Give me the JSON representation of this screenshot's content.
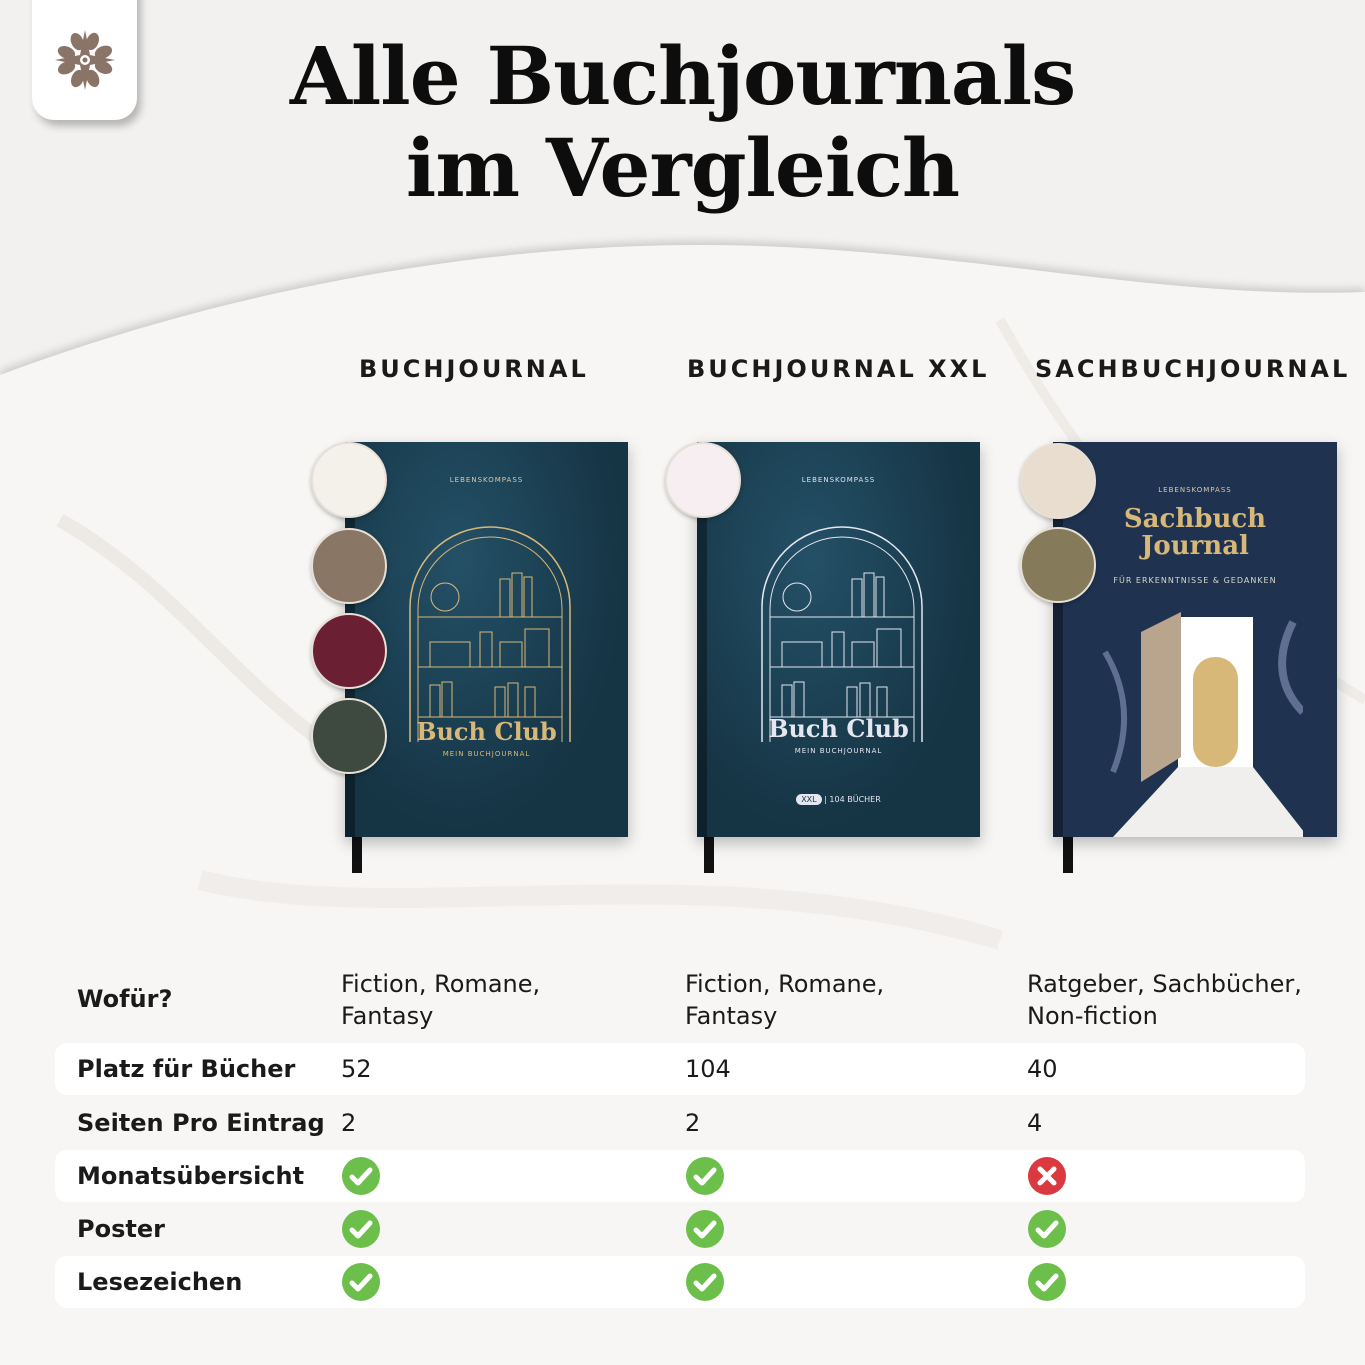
{
  "title": {
    "line1": "Alle Buchjournals",
    "line2": "im Vergleich"
  },
  "logo": {
    "icon": "compass-rose-icon",
    "color": "#8a7468"
  },
  "columns": [
    {
      "header": "BUCHJOURNAL",
      "cover": {
        "brand": "LEBENSKOMPASS",
        "title": "Buch Club",
        "subtitle": "MEIN BUCHJOURNAL",
        "accent": "#d8b878",
        "bg": "#173848"
      },
      "swatches": [
        "#f4f0ea",
        "#8a7665",
        "#6b1f33",
        "#3e4a40"
      ]
    },
    {
      "header": "BUCHJOURNAL XXL",
      "cover": {
        "brand": "LEBENSKOMPASS",
        "title": "Buch Club",
        "subtitle": "MEIN BUCHJOURNAL",
        "badge": "XXL",
        "badge_note": "104 BÜCHER",
        "accent": "#e4e6f0",
        "bg": "#173848"
      },
      "swatches": [
        "#f6eef0"
      ]
    },
    {
      "header": "SACHBUCHJOURNAL",
      "cover": {
        "brand": "LEBENSKOMPASS",
        "title": "Sachbuch Journal",
        "subtitle": "FÜR ERKENNTNISSE & GEDANKEN",
        "accent": "#d8b878",
        "bg": "#1f3350"
      },
      "swatches": [
        "#e9ddd0",
        "#857a5a"
      ]
    }
  ],
  "table": {
    "rows": [
      {
        "label": "Wofür?",
        "values": [
          "Fiction, Romane, Fantasy",
          "Fiction, Romane, Fantasy",
          "Ratgeber, Sachbücher, Non-fiction"
        ],
        "values_lines": [
          [
            "Fiction, Romane,",
            "Fantasy"
          ],
          [
            "Fiction, Romane,",
            "Fantasy"
          ],
          [
            "Ratgeber, Sachbücher,",
            "Non-fiction"
          ]
        ]
      },
      {
        "label": "Platz für Bücher",
        "values": [
          "52",
          "104",
          "40"
        ]
      },
      {
        "label": "Seiten Pro Eintrag",
        "values": [
          "2",
          "2",
          "4"
        ]
      },
      {
        "label": "Monatsübersicht",
        "values": [
          true,
          true,
          false
        ]
      },
      {
        "label": "Poster",
        "values": [
          true,
          true,
          true
        ]
      },
      {
        "label": "Lesezeichen",
        "values": [
          true,
          true,
          true
        ]
      }
    ],
    "icons": {
      "yes": "check-circle-icon",
      "no": "x-circle-icon"
    },
    "colors": {
      "yes": "#6cbf4a",
      "no": "#d9393f"
    }
  }
}
